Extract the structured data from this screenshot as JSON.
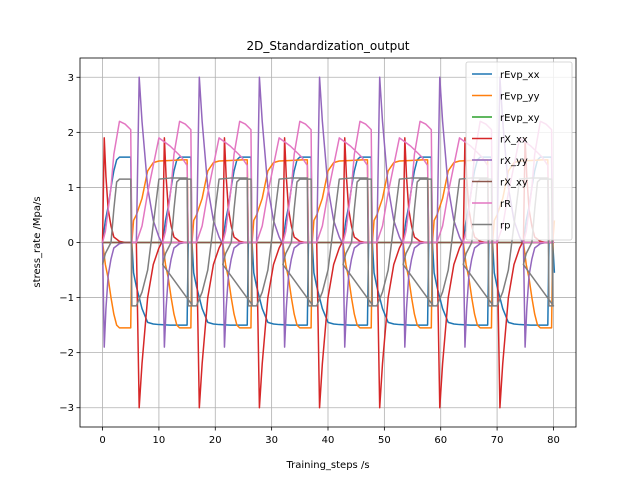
{
  "chart_data": {
    "type": "line",
    "title": "2D_Standardization_output",
    "xlabel": "Training_steps /s",
    "ylabel": "stress_rate /Mpa/s",
    "xlim": [
      -4,
      84
    ],
    "ylim": [
      -3.35,
      3.35
    ],
    "xticks": [
      0,
      10,
      20,
      30,
      40,
      50,
      60,
      70,
      80
    ],
    "yticks": [
      -3,
      -2,
      -1,
      0,
      1,
      2,
      3
    ],
    "grid": true,
    "legend_position": "top-right",
    "cycle_starts": [
      0,
      10.67,
      21.33,
      32,
      42.67,
      53.33,
      64,
      74.67
    ],
    "series": [
      {
        "name": "rEvp_xx",
        "color": "#1f77b4",
        "x": [
          0,
          0.5,
          1,
          1.5,
          2,
          2.5,
          3,
          4.2,
          5,
          5.2,
          5.5,
          6,
          7,
          8,
          9,
          10,
          12,
          14,
          15,
          15.2,
          15.5,
          16
        ],
        "y": [
          0,
          0.4,
          0.65,
          1.0,
          1.3,
          1.5,
          1.55,
          1.55,
          1.55,
          0,
          -0.55,
          -0.8,
          -1.2,
          -1.45,
          -1.48,
          -1.49,
          -1.5,
          -1.5,
          -1.5,
          0,
          0,
          0
        ]
      },
      {
        "name": "rEvp_yy",
        "color": "#ff7f0e",
        "x": [
          0,
          0.5,
          1,
          1.5,
          2,
          2.5,
          3,
          4.2,
          5,
          5.2,
          5.5,
          6,
          7,
          8,
          9,
          10,
          12,
          14,
          15,
          15.2,
          15.5,
          16
        ],
        "y": [
          0,
          -0.4,
          -0.65,
          -1.0,
          -1.3,
          -1.5,
          -1.55,
          -1.55,
          -1.55,
          0,
          0.4,
          0.5,
          0.8,
          1.3,
          1.45,
          1.48,
          1.49,
          1.5,
          1.5,
          0,
          0,
          0
        ]
      },
      {
        "name": "rEvp_xy",
        "color": "#2ca02c",
        "x": [
          0,
          16
        ],
        "y": [
          0,
          0
        ]
      },
      {
        "name": "rX_xx",
        "color": "#d62728",
        "x": [
          0,
          0.3,
          0.6,
          1,
          1.5,
          2,
          3,
          4,
          5,
          5.2,
          6,
          6.5,
          7,
          8,
          9,
          10,
          10.5
        ],
        "y": [
          0,
          1.9,
          1.2,
          0.6,
          0.3,
          0.1,
          0.02,
          0,
          0,
          0,
          0,
          -3.0,
          -2.2,
          -1.0,
          -0.4,
          -0.1,
          0
        ]
      },
      {
        "name": "rX_yy",
        "color": "#9467bd",
        "x": [
          0,
          0.3,
          0.6,
          1,
          1.5,
          2,
          3,
          4,
          5,
          5.2,
          6,
          6.5,
          7,
          8,
          9,
          10,
          10.5
        ],
        "y": [
          0,
          -1.9,
          -1.2,
          -0.6,
          -0.3,
          -0.1,
          -0.02,
          0,
          0,
          0,
          0,
          3.0,
          2.2,
          1.0,
          0.4,
          0.1,
          0
        ]
      },
      {
        "name": "rX_xy",
        "color": "#8c564b",
        "x": [
          0,
          16
        ],
        "y": [
          0,
          0
        ]
      },
      {
        "name": "rR",
        "color": "#e377c2",
        "x": [
          0,
          0.5,
          1,
          1.5,
          2,
          3,
          4,
          5,
          5.2,
          6,
          7,
          8,
          10,
          12,
          14,
          15,
          15.2,
          16
        ],
        "y": [
          0,
          0.2,
          0.6,
          1.0,
          1.6,
          2.2,
          2.15,
          2.05,
          0,
          0,
          0.3,
          0.9,
          1.9,
          1.75,
          1.55,
          1.4,
          0,
          0
        ]
      },
      {
        "name": "rp",
        "color": "#7f7f7f",
        "x": [
          0,
          0.5,
          1,
          1.5,
          2,
          2.5,
          3,
          4,
          5,
          5.2,
          6,
          7,
          8,
          10,
          12,
          14,
          15,
          15.2,
          16
        ],
        "y": [
          -0.4,
          -0.2,
          -0.1,
          0,
          0.6,
          1.1,
          1.15,
          1.15,
          1.15,
          -1.15,
          -1.15,
          -0.9,
          -0.5,
          1.15,
          1.17,
          1.17,
          1.17,
          -1.15,
          -1.15
        ]
      }
    ]
  }
}
